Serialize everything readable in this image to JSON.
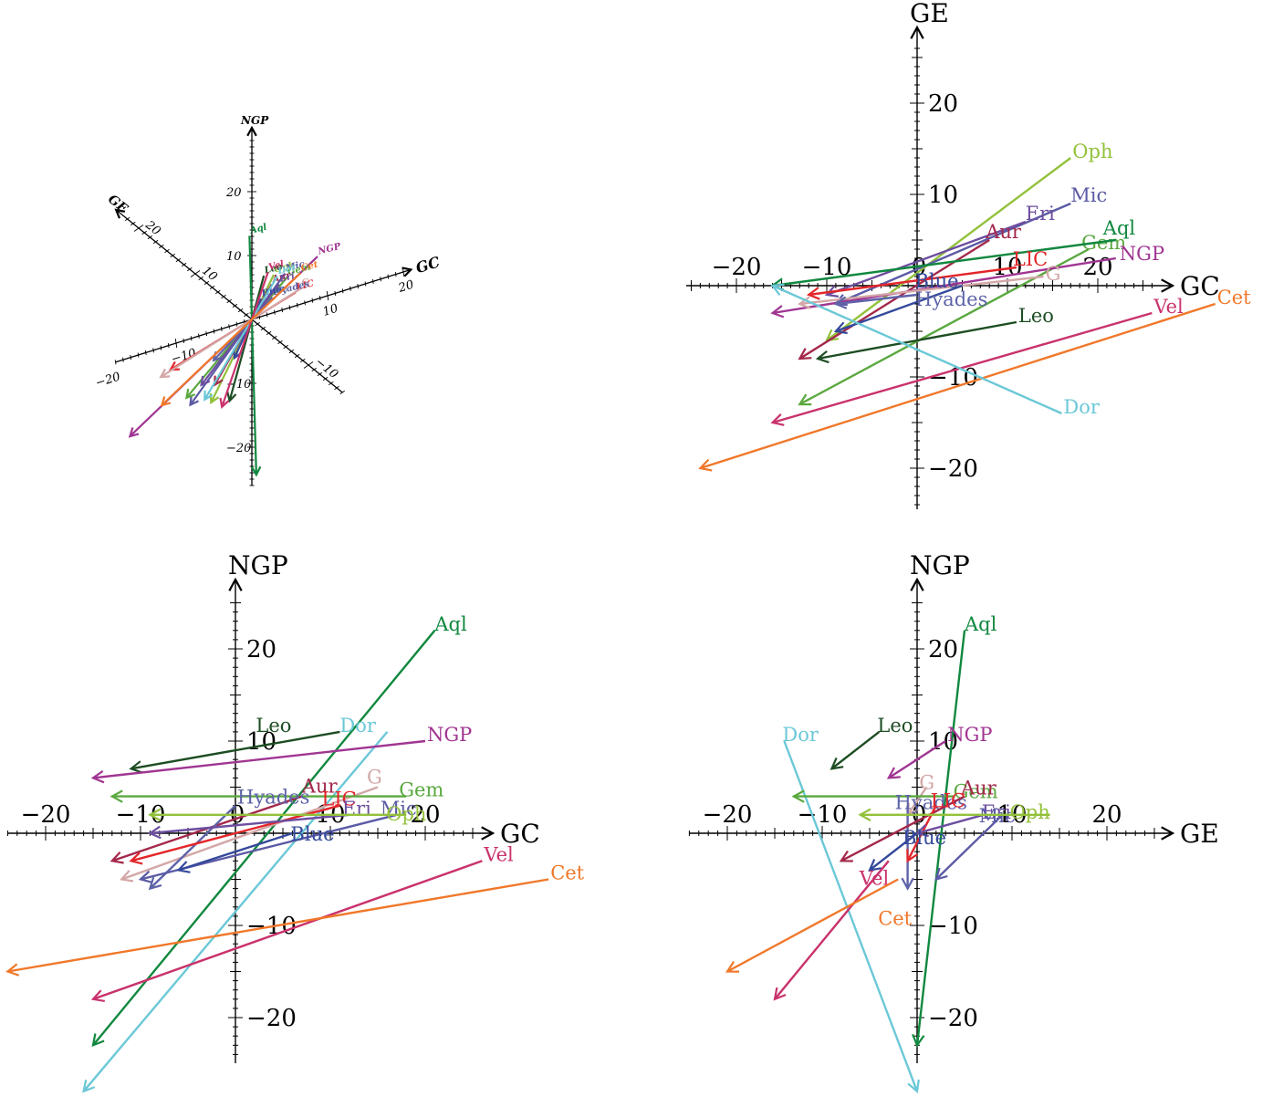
{
  "chart_data": [
    {
      "type": "vector",
      "projection": "oblique-3d",
      "axis_labels": {
        "gc": "GC",
        "ge": "GE",
        "ngp": "NGP"
      },
      "gc_ticks": [
        -20,
        -10,
        10,
        20
      ],
      "ge_ticks": [
        -10,
        10,
        20
      ],
      "ngp_ticks": [
        -20,
        -10,
        10,
        20
      ],
      "vectors": [
        {
          "name": "Aql",
          "color": "#11883f",
          "vector": [
            -23.0,
            -32.0,
            -6.0
          ]
        },
        {
          "name": "NGP",
          "color": "#a03592",
          "vector": [
            -30.0,
            -7.0,
            -12.0
          ]
        },
        {
          "name": "Oph",
          "color": "#93c13b",
          "vector": [
            -15.0,
            -9.0,
            -8.0
          ]
        },
        {
          "name": "Leo",
          "color": "#1d4d23",
          "vector": [
            -12.0,
            -10.0,
            -8.0
          ]
        },
        {
          "name": "Mic",
          "color": "#5b5aa5",
          "vector": [
            -17.0,
            -6.0,
            -10.0
          ]
        },
        {
          "name": "Gem",
          "color": "#5aa83f",
          "vector": [
            -20.0,
            -9.0,
            -5.0
          ]
        },
        {
          "name": "Aur",
          "color": "#a3284a",
          "vector": [
            -12.0,
            -6.0,
            -7.0
          ]
        },
        {
          "name": "Eri",
          "color": "#6d4ea0",
          "vector": [
            -14.0,
            -5.0,
            -7.0
          ]
        },
        {
          "name": "LIC",
          "color": "#e3262a",
          "vector": [
            -18.0,
            -2.0,
            -4.0
          ]
        },
        {
          "name": "G",
          "color": "#d3a7a7",
          "vector": [
            -20.0,
            -2.0,
            -5.0
          ]
        },
        {
          "name": "Hyades",
          "color": "#5e63a8",
          "vector": [
            -10.0,
            -3.0,
            -4.0
          ]
        },
        {
          "name": "Blue",
          "color": "#34499b",
          "vector": [
            -8.0,
            -6.0,
            -2.0
          ]
        },
        {
          "name": "Dor",
          "color": "#6bc8d7",
          "vector": [
            -32.0,
            -30.0,
            14.0
          ]
        },
        {
          "name": "Vel",
          "color": "#c9326c",
          "vector": [
            -24.0,
            -24.0,
            5.0
          ]
        },
        {
          "name": "Cet",
          "color": "#f0782a",
          "vector": [
            -31.0,
            -17.0,
            3.0
          ]
        }
      ]
    },
    {
      "type": "vector",
      "x_axis_label": "GC",
      "y_axis_label": "GE",
      "xlim": [
        -25,
        33
      ],
      "ylim": [
        -25,
        28
      ],
      "x_ticks": [
        -20,
        -10,
        0,
        10,
        20
      ],
      "y_ticks": [
        -20,
        -10,
        10,
        20
      ],
      "vectors": [
        {
          "name": "Oph",
          "color": "#93c13b",
          "x": [
            17,
            -10
          ],
          "y": [
            14,
            -6
          ]
        },
        {
          "name": "Mic",
          "color": "#5b5aa5",
          "x": [
            17,
            -9
          ],
          "y": [
            9,
            -2
          ]
        },
        {
          "name": "Eri",
          "color": "#6d4ea0",
          "x": [
            12,
            -10
          ],
          "y": [
            7,
            -1
          ]
        },
        {
          "name": "Aur",
          "color": "#a3284a",
          "x": [
            8,
            -13
          ],
          "y": [
            5,
            -8
          ]
        },
        {
          "name": "Gem",
          "color": "#5aa83f",
          "x": [
            19,
            -13
          ],
          "y": [
            4,
            -13
          ]
        },
        {
          "name": "Aql",
          "color": "#11883f",
          "x": [
            22,
            -16
          ],
          "y": [
            5,
            0
          ]
        },
        {
          "name": "NGP",
          "color": "#a03592",
          "x": [
            22,
            -16
          ],
          "y": [
            3,
            -3
          ]
        },
        {
          "name": "LIC",
          "color": "#e3262a",
          "x": [
            11,
            -12
          ],
          "y": [
            2,
            -1
          ]
        },
        {
          "name": "G",
          "color": "#d3a7a7",
          "x": [
            14,
            -13
          ],
          "y": [
            1,
            -2
          ]
        },
        {
          "name": "Blue",
          "color": "#34499b",
          "x": [
            5,
            -9
          ],
          "y": [
            0,
            -5
          ]
        },
        {
          "name": "Hyades",
          "color": "#5e63a8",
          "x": [
            0,
            -9
          ],
          "y": [
            -1,
            -2
          ]
        },
        {
          "name": "Leo",
          "color": "#1d4d23",
          "x": [
            11,
            -11
          ],
          "y": [
            -4,
            -8
          ]
        },
        {
          "name": "Vel",
          "color": "#c9326c",
          "x": [
            26,
            -16
          ],
          "y": [
            -3,
            -15
          ]
        },
        {
          "name": "Cet",
          "color": "#f0782a",
          "x": [
            33,
            -24
          ],
          "y": [
            -2,
            -20
          ]
        },
        {
          "name": "Dor",
          "color": "#6bc8d7",
          "x": [
            16,
            -16
          ],
          "y": [
            -14,
            0
          ]
        }
      ]
    },
    {
      "type": "vector",
      "x_axis_label": "GC",
      "y_axis_label": "NGP",
      "xlim": [
        -25,
        28
      ],
      "ylim": [
        -25,
        28
      ],
      "x_ticks": [
        -20,
        -10,
        0,
        10,
        20
      ],
      "y_ticks": [
        -20,
        -10,
        10,
        20
      ],
      "vectors": [
        {
          "name": "Aql",
          "color": "#11883f",
          "x": [
            21,
            -15
          ],
          "y": [
            22,
            -23
          ]
        },
        {
          "name": "Leo",
          "color": "#1d4d23",
          "x": [
            11,
            -11
          ],
          "y": [
            11,
            7
          ]
        },
        {
          "name": "Dor",
          "color": "#6bc8d7",
          "x": [
            16,
            -16
          ],
          "y": [
            11,
            -28
          ]
        },
        {
          "name": "NGP",
          "color": "#a03592",
          "x": [
            20,
            -15
          ],
          "y": [
            10,
            6
          ]
        },
        {
          "name": "G",
          "color": "#d3a7a7",
          "x": [
            15,
            -12
          ],
          "y": [
            5,
            -5
          ]
        },
        {
          "name": "Gem",
          "color": "#5aa83f",
          "x": [
            18,
            -13
          ],
          "y": [
            4,
            4
          ]
        },
        {
          "name": "Aur",
          "color": "#a3284a",
          "x": [
            7,
            -13
          ],
          "y": [
            4,
            -3
          ]
        },
        {
          "name": "Hyades",
          "color": "#5e63a8",
          "x": [
            0,
            -9
          ],
          "y": [
            3,
            -6
          ]
        },
        {
          "name": "LIC",
          "color": "#e3262a",
          "x": [
            11,
            -11
          ],
          "y": [
            3,
            -3
          ]
        },
        {
          "name": "Eri",
          "color": "#6d4ea0",
          "x": [
            12,
            -9
          ],
          "y": [
            2,
            0
          ]
        },
        {
          "name": "Mic",
          "color": "#5b5aa5",
          "x": [
            17,
            -10
          ],
          "y": [
            2,
            -5
          ]
        },
        {
          "name": "Oph",
          "color": "#93c13b",
          "x": [
            18,
            -9
          ],
          "y": [
            2,
            2
          ]
        },
        {
          "name": "Blue",
          "color": "#34499b",
          "x": [
            6,
            -6
          ],
          "y": [
            0,
            -4
          ]
        },
        {
          "name": "Vel",
          "color": "#c9326c",
          "x": [
            26,
            -15
          ],
          "y": [
            -3,
            -18
          ]
        },
        {
          "name": "Cet",
          "color": "#f0782a",
          "x": [
            33,
            -24
          ],
          "y": [
            -5,
            -15
          ]
        }
      ]
    },
    {
      "type": "vector",
      "x_axis_label": "GE",
      "y_axis_label": "NGP",
      "xlim": [
        -25,
        28
      ],
      "ylim": [
        -25,
        28
      ],
      "x_ticks": [
        -20,
        -10,
        0,
        10,
        20
      ],
      "y_ticks": [
        -20,
        -10,
        10,
        20
      ],
      "vectors": [
        {
          "name": "Aql",
          "color": "#11883f",
          "x": [
            5,
            0
          ],
          "y": [
            22,
            -23
          ]
        },
        {
          "name": "Dor",
          "color": "#6bc8d7",
          "x": [
            -14,
            0
          ],
          "y": [
            10,
            -28
          ]
        },
        {
          "name": "Leo",
          "color": "#1d4d23",
          "x": [
            -4,
            -9
          ],
          "y": [
            11,
            7
          ]
        },
        {
          "name": "NGP",
          "color": "#a03592",
          "x": [
            3,
            -3
          ],
          "y": [
            10,
            6
          ]
        },
        {
          "name": "G",
          "color": "#d3a7a7",
          "x": [
            1,
            -1
          ],
          "y": [
            5,
            2
          ]
        },
        {
          "name": "Gem",
          "color": "#5aa83f",
          "x": [
            4,
            -13
          ],
          "y": [
            4,
            4
          ]
        },
        {
          "name": "Hyades",
          "color": "#5e63a8",
          "x": [
            -1,
            -1
          ],
          "y": [
            3,
            -6
          ]
        },
        {
          "name": "Aur",
          "color": "#a3284a",
          "x": [
            5,
            -8
          ],
          "y": [
            4,
            -3
          ]
        },
        {
          "name": "LIC",
          "color": "#e3262a",
          "x": [
            2,
            -1
          ],
          "y": [
            3,
            -3
          ]
        },
        {
          "name": "Eri",
          "color": "#6d4ea0",
          "x": [
            7,
            0
          ],
          "y": [
            2,
            0
          ]
        },
        {
          "name": "Mic",
          "color": "#5b5aa5",
          "x": [
            9,
            2
          ],
          "y": [
            2,
            -5
          ]
        },
        {
          "name": "Oph",
          "color": "#93c13b",
          "x": [
            14,
            -6
          ],
          "y": [
            2,
            2
          ]
        },
        {
          "name": "Blue",
          "color": "#34499b",
          "x": [
            0,
            -5
          ],
          "y": [
            0,
            -4
          ]
        },
        {
          "name": "Vel",
          "color": "#c9326c",
          "x": [
            -3,
            -15
          ],
          "y": [
            -3,
            -18
          ]
        },
        {
          "name": "Cet",
          "color": "#f0782a",
          "x": [
            -2,
            -20
          ],
          "y": [
            -5,
            -15
          ]
        }
      ]
    }
  ]
}
